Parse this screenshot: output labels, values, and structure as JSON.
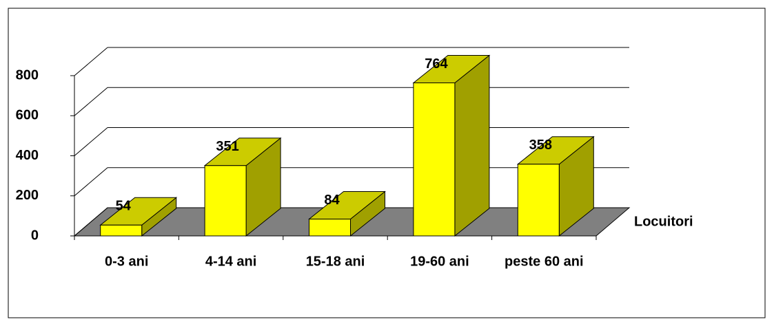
{
  "chart_data": {
    "type": "bar3d",
    "categories": [
      "0-3 ani",
      "4-14 ani",
      "15-18 ani",
      "19-60 ani",
      "peste 60 ani"
    ],
    "series": [
      {
        "name": "Locuitori",
        "color": "#ffff00",
        "values": [
          54,
          351,
          84,
          764,
          358
        ]
      }
    ],
    "ylim": [
      0,
      800
    ],
    "yticks": [
      0,
      200,
      400,
      600,
      800
    ],
    "grid": true,
    "legend": "right"
  }
}
